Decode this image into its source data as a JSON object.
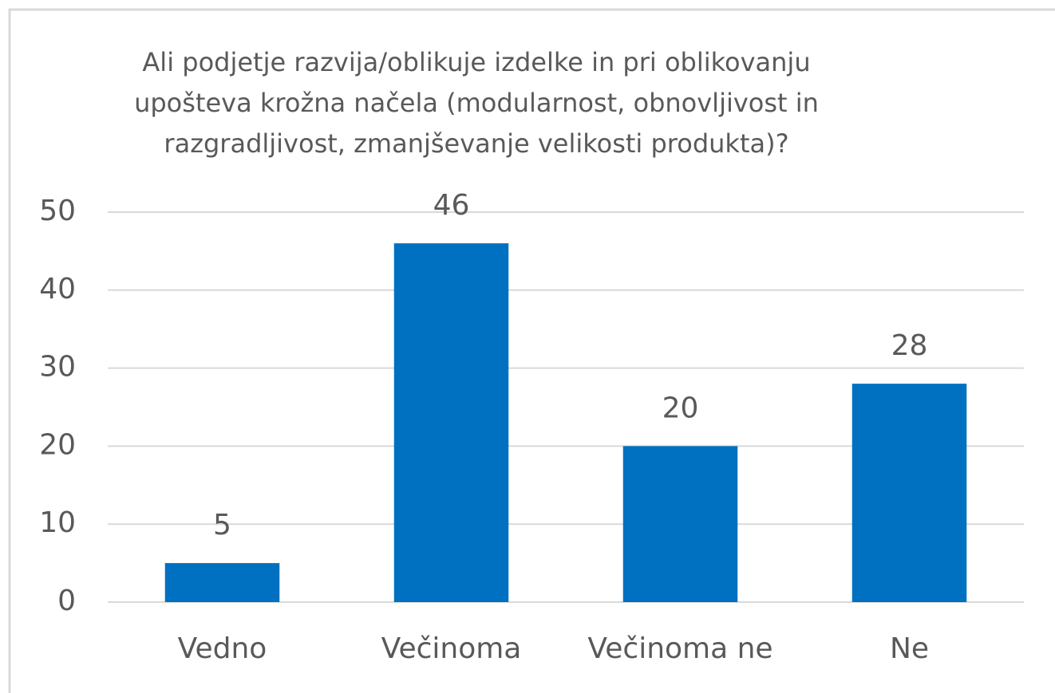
{
  "chart_data": {
    "type": "bar",
    "title": [
      "Ali podjetje razvija/oblikuje izdelke in pri oblikovanju",
      "upošteva krožna načela (modularnost, obnovljivost in",
      "razgradljivost, zmanjševanje velikosti produkta)?"
    ],
    "categories": [
      "Vedno",
      "Večinoma",
      "Večinoma ne",
      "Ne"
    ],
    "values": [
      5,
      46,
      20,
      28
    ],
    "color": "#0070c0",
    "ylim": [
      0,
      50
    ],
    "yticks": [
      0,
      10,
      20,
      30,
      40,
      50
    ],
    "grid": true
  }
}
